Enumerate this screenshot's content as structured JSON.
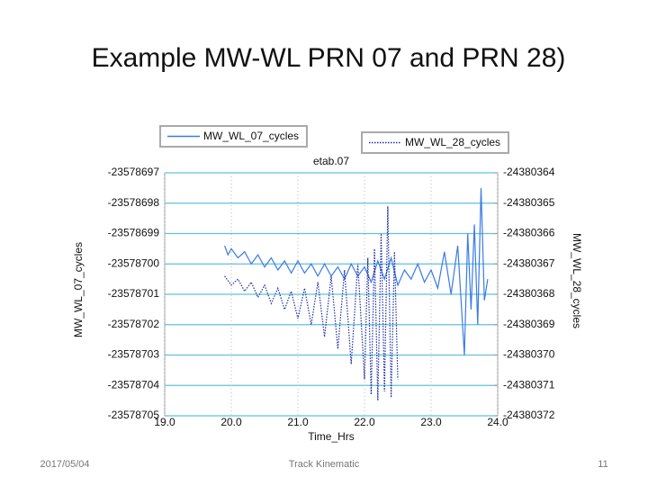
{
  "slide": {
    "title": "Example MW-WL PRN 07 and  PRN 28)",
    "date": "2017/05/04",
    "footer": "Track Kinematic",
    "page": "11"
  },
  "chart_data": {
    "type": "line",
    "title": "etab.07",
    "xlabel": "Time_Hrs",
    "ylabel": "MW_WL_07_cycles",
    "y2label": "MW_WL_28_cycles",
    "xlim": [
      19,
      24
    ],
    "xticks": [
      {
        "value": 19,
        "label": "19.0"
      },
      {
        "value": 20,
        "label": "20.0"
      },
      {
        "value": 21,
        "label": "21.0"
      },
      {
        "value": 22,
        "label": "22.0"
      },
      {
        "value": 23,
        "label": "23.0"
      },
      {
        "value": 24,
        "label": "24.0"
      }
    ],
    "ylim": [
      -23578705,
      -23578697
    ],
    "yticks": [
      -23578697,
      -23578698,
      -23578699,
      -23578700,
      -23578701,
      -23578702,
      -23578703,
      -23578704,
      -23578705
    ],
    "y2lim": [
      -24380372,
      -24380364
    ],
    "y2ticks": [
      -24380364,
      -24380365,
      -24380366,
      -24380367,
      -24380368,
      -24380369,
      -24380370,
      -24380371,
      -24380372
    ],
    "grid": true,
    "series": [
      {
        "name": "MW_WL_07_cycles",
        "color": "#3a7be6",
        "dash": "solid",
        "x": [
          19.9,
          19.95,
          20.0,
          20.1,
          20.2,
          20.3,
          20.4,
          20.5,
          20.6,
          20.7,
          20.8,
          20.9,
          21.0,
          21.1,
          21.2,
          21.3,
          21.4,
          21.5,
          21.6,
          21.7,
          21.8,
          21.9,
          22.0,
          22.1,
          22.2,
          22.3,
          22.4,
          22.5,
          22.6,
          22.7,
          22.8,
          22.9,
          23.0,
          23.1,
          23.2,
          23.3,
          23.4,
          23.5,
          23.55,
          23.6,
          23.65,
          23.7,
          23.75,
          23.8,
          23.85
        ],
        "values": [
          -23578699.4,
          -23578699.7,
          -23578699.5,
          -23578699.8,
          -23578699.6,
          -23578700.0,
          -23578699.7,
          -23578700.1,
          -23578699.8,
          -23578700.2,
          -23578699.9,
          -23578700.3,
          -23578699.9,
          -23578700.3,
          -23578700.0,
          -23578700.4,
          -23578700.0,
          -23578700.4,
          -23578700.1,
          -23578700.5,
          -23578700.0,
          -23578700.4,
          -23578700.1,
          -23578700.6,
          -23578699.9,
          -23578700.5,
          -23578699.8,
          -23578700.7,
          -23578700.2,
          -23578700.5,
          -23578700.0,
          -23578700.6,
          -23578700.2,
          -23578700.8,
          -23578699.6,
          -23578701.0,
          -23578699.4,
          -23578703.0,
          -23578699.0,
          -23578701.5,
          -23578698.7,
          -23578702.0,
          -23578697.5,
          -23578701.2,
          -23578700.5
        ]
      },
      {
        "name": "MW_WL_28_cycles",
        "color": "#1f2ea0",
        "dash": "dotted",
        "axis": "y2",
        "x": [
          19.9,
          20.0,
          20.1,
          20.2,
          20.3,
          20.4,
          20.5,
          20.6,
          20.7,
          20.8,
          20.9,
          21.0,
          21.1,
          21.2,
          21.3,
          21.4,
          21.5,
          21.6,
          21.7,
          21.8,
          21.9,
          22.0,
          22.05,
          22.1,
          22.15,
          22.2,
          22.25,
          22.3,
          22.35,
          22.4,
          22.45,
          22.5
        ],
        "values": [
          -24380367.4,
          -24380367.7,
          -24380367.5,
          -24380367.9,
          -24380367.6,
          -24380368.1,
          -24380367.7,
          -24380368.3,
          -24380367.8,
          -24380368.5,
          -24380367.9,
          -24380368.8,
          -24380367.8,
          -24380369.0,
          -24380367.6,
          -24380369.4,
          -24380367.4,
          -24380369.8,
          -24380367.2,
          -24380370.3,
          -24380367.0,
          -24380370.8,
          -24380366.8,
          -24380371.3,
          -24380366.5,
          -24380371.5,
          -24380366.0,
          -24380371.2,
          -24380365.1,
          -24380371.4,
          -24380366.6,
          -24380370.8
        ]
      }
    ]
  }
}
